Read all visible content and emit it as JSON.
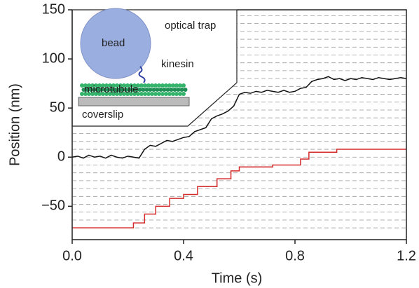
{
  "chart_data": {
    "type": "line",
    "xlabel": "Time (s)",
    "ylabel": "Position (nm)",
    "xlim": [
      0,
      1.2
    ],
    "ylim": [
      -84,
      150
    ],
    "xticks": [
      {
        "value": 0,
        "label": "0.0"
      },
      {
        "value": 0.4,
        "label": "0.4"
      },
      {
        "value": 0.8,
        "label": "0.8"
      },
      {
        "value": 1.2,
        "label": "1.2"
      }
    ],
    "yticks": [
      {
        "value": -50,
        "label": "−50"
      },
      0,
      50,
      100,
      150
    ],
    "hlines": [
      -72,
      -64,
      -56,
      -48,
      -40,
      -32,
      -24,
      -16,
      -8,
      0,
      8,
      16,
      24,
      32,
      40,
      48,
      56,
      64,
      72,
      80,
      88,
      96,
      104,
      112,
      120,
      128,
      136,
      144
    ],
    "annotations": [
      "optical trap",
      "bead",
      "kinesin",
      "microtubule",
      "coverslip"
    ],
    "series": [
      {
        "color": "#111111",
        "step": false,
        "x": [
          0,
          0.02,
          0.04,
          0.06,
          0.08,
          0.1,
          0.12,
          0.14,
          0.16,
          0.18,
          0.2,
          0.22,
          0.24,
          0.26,
          0.28,
          0.3,
          0.32,
          0.34,
          0.36,
          0.38,
          0.4,
          0.42,
          0.44,
          0.46,
          0.48,
          0.5,
          0.52,
          0.54,
          0.56,
          0.58,
          0.6,
          0.62,
          0.64,
          0.66,
          0.68,
          0.7,
          0.72,
          0.74,
          0.76,
          0.78,
          0.8,
          0.82,
          0.84,
          0.86,
          0.88,
          0.9,
          0.92,
          0.94,
          0.96,
          0.98,
          1.0,
          1.02,
          1.04,
          1.06,
          1.08,
          1.1,
          1.12,
          1.14,
          1.16,
          1.18,
          1.2
        ],
        "values": [
          0,
          1,
          -1,
          2,
          0,
          1,
          -1,
          2,
          0,
          -1,
          1,
          0,
          -1,
          8,
          12,
          11,
          14,
          17,
          16,
          18,
          20,
          21,
          26,
          28,
          30,
          39,
          42,
          44,
          47,
          52,
          64,
          66,
          65,
          67,
          66,
          68,
          67,
          66,
          68,
          66,
          67,
          70,
          71,
          77,
          79,
          80,
          82,
          79,
          80,
          78,
          80,
          79,
          81,
          80,
          79,
          81,
          80,
          79,
          80,
          81,
          80
        ]
      },
      {
        "color": "#d42a2a",
        "step": true,
        "x": [
          0,
          0.22,
          0.26,
          0.3,
          0.35,
          0.4,
          0.45,
          0.52,
          0.57,
          0.6,
          0.72,
          0.82,
          0.85,
          0.95,
          1.2
        ],
        "values": [
          -72,
          -67,
          -58,
          -50,
          -42,
          -38,
          -30,
          -22,
          -14,
          -10,
          -8,
          -2,
          5,
          8,
          8
        ]
      }
    ]
  }
}
